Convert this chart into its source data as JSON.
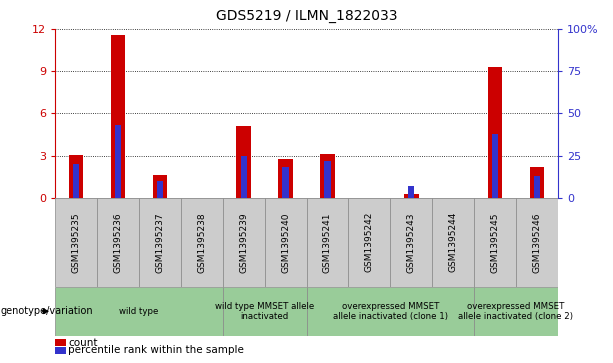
{
  "title": "GDS5219 / ILMN_1822033",
  "samples": [
    "GSM1395235",
    "GSM1395236",
    "GSM1395237",
    "GSM1395238",
    "GSM1395239",
    "GSM1395240",
    "GSM1395241",
    "GSM1395242",
    "GSM1395243",
    "GSM1395244",
    "GSM1395245",
    "GSM1395246"
  ],
  "count_values": [
    3.05,
    11.6,
    1.6,
    0.0,
    5.1,
    2.75,
    3.1,
    0.0,
    0.3,
    0.0,
    9.3,
    2.2
  ],
  "percentile_values": [
    20,
    43,
    10,
    0,
    25,
    18,
    22,
    0,
    7,
    0,
    38,
    13
  ],
  "ylim_left": [
    0,
    12
  ],
  "ylim_right": [
    0,
    100
  ],
  "yticks_left": [
    0,
    3,
    6,
    9,
    12
  ],
  "yticks_right": [
    0,
    25,
    50,
    75,
    100
  ],
  "yticklabels_right": [
    "0",
    "25",
    "50",
    "75",
    "100%"
  ],
  "bar_color_red": "#cc0000",
  "bar_color_blue": "#3333cc",
  "groups_def": [
    {
      "label": "wild type",
      "start": 0,
      "end": 3
    },
    {
      "label": "wild type MMSET allele\ninactivated",
      "start": 4,
      "end": 5
    },
    {
      "label": "overexpressed MMSET\nallele inactivated (clone 1)",
      "start": 6,
      "end": 9
    },
    {
      "label": "overexpressed MMSET\nallele inactivated (clone 2)",
      "start": 10,
      "end": 11
    }
  ],
  "legend_count_label": "count",
  "legend_pct_label": "percentile rank within the sample",
  "genotype_label": "genotype/variation",
  "background_color": "#ffffff",
  "axis_color_left": "#cc0000",
  "axis_color_right": "#3333cc",
  "green_color": "#99cc99",
  "gray_color": "#cccccc",
  "n_samples": 12
}
